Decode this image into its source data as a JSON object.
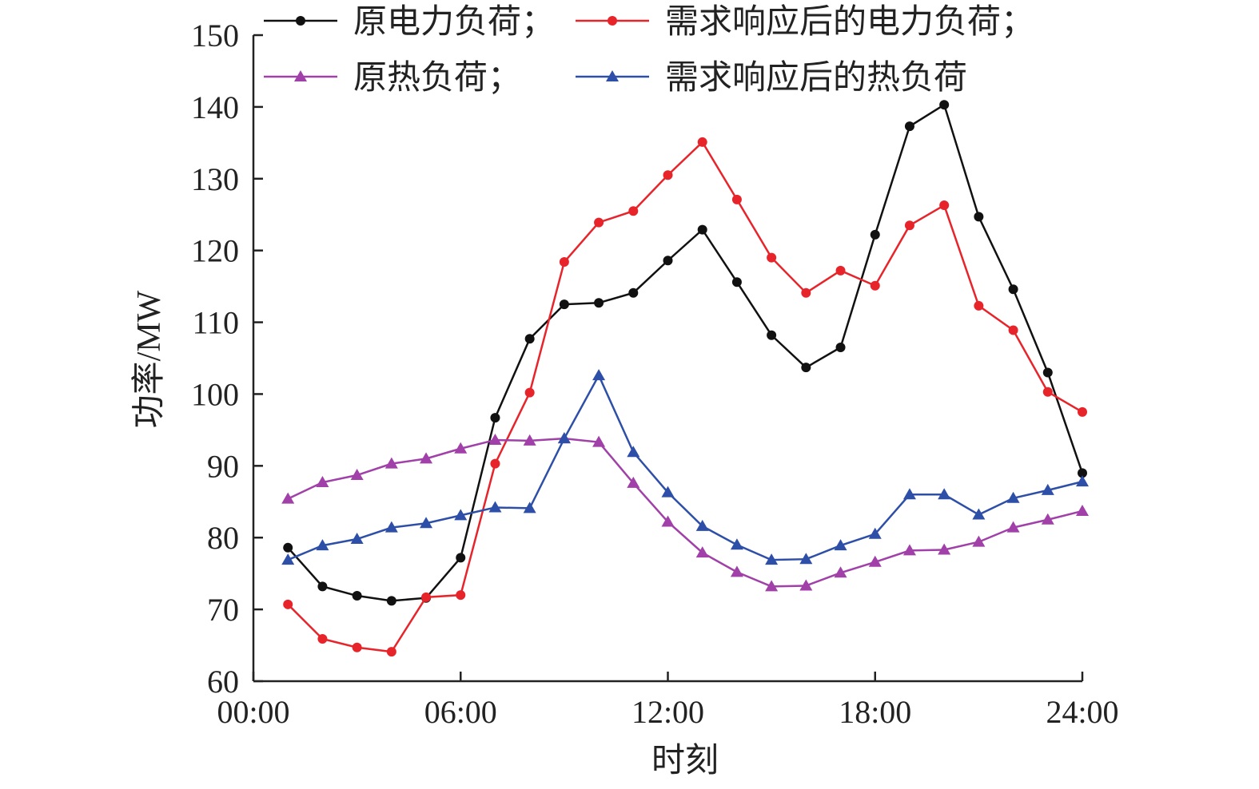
{
  "chart_data": {
    "type": "line",
    "title": "",
    "xlabel": "时刻",
    "ylabel": "功率/MW",
    "xlim": [
      0,
      24
    ],
    "ylim": [
      60,
      150
    ],
    "grid": false,
    "legend_position": "top",
    "x_ticks": [
      0,
      6,
      12,
      18,
      24
    ],
    "x_tick_labels": [
      "00:00",
      "06:00",
      "12:00",
      "18:00",
      "24:00"
    ],
    "y_ticks": [
      60,
      70,
      80,
      90,
      100,
      110,
      120,
      130,
      140,
      150
    ],
    "y_tick_labels": [
      "60",
      "70",
      "80",
      "90",
      "100",
      "110",
      "120",
      "130",
      "140",
      "150"
    ],
    "x": [
      1,
      2,
      3,
      4,
      5,
      6,
      7,
      8,
      9,
      10,
      11,
      12,
      13,
      14,
      15,
      16,
      17,
      18,
      19,
      20,
      21,
      22,
      23,
      24
    ],
    "series": [
      {
        "name": "原电力负荷；",
        "color": "#111111",
        "marker": "circle",
        "values": [
          78.6,
          73.2,
          71.9,
          71.2,
          71.6,
          77.2,
          96.7,
          107.7,
          112.5,
          112.7,
          114.1,
          118.6,
          122.9,
          115.6,
          108.2,
          103.7,
          106.5,
          122.2,
          137.3,
          140.3,
          124.7,
          114.6,
          103.0,
          89.0
        ]
      },
      {
        "name": "需求响应后的电力负荷；",
        "color": "#e8242b",
        "marker": "circle",
        "values": [
          70.7,
          65.9,
          64.7,
          64.1,
          71.7,
          72.0,
          90.3,
          100.2,
          118.4,
          123.9,
          125.5,
          130.5,
          135.1,
          127.1,
          119.0,
          114.1,
          117.2,
          115.1,
          123.5,
          126.3,
          112.3,
          108.9,
          100.3,
          97.5
        ]
      },
      {
        "name": "原热负荷；",
        "color": "#a040a8",
        "marker": "triangle",
        "values": [
          85.4,
          87.7,
          88.7,
          90.3,
          91.0,
          92.4,
          93.6,
          93.5,
          93.8,
          93.3,
          87.6,
          82.2,
          77.9,
          75.2,
          73.2,
          73.3,
          75.1,
          76.6,
          78.2,
          78.3,
          79.4,
          81.4,
          82.5,
          83.7
        ]
      },
      {
        "name": "需求响应后的热负荷",
        "color": "#2e4fa8",
        "marker": "triangle",
        "values": [
          76.9,
          78.9,
          79.8,
          81.4,
          82.0,
          83.1,
          84.2,
          84.1,
          93.8,
          102.6,
          91.9,
          86.3,
          81.6,
          79.0,
          76.9,
          77.0,
          78.9,
          80.5,
          86.0,
          86.0,
          83.2,
          85.5,
          86.6,
          87.8
        ]
      }
    ]
  }
}
